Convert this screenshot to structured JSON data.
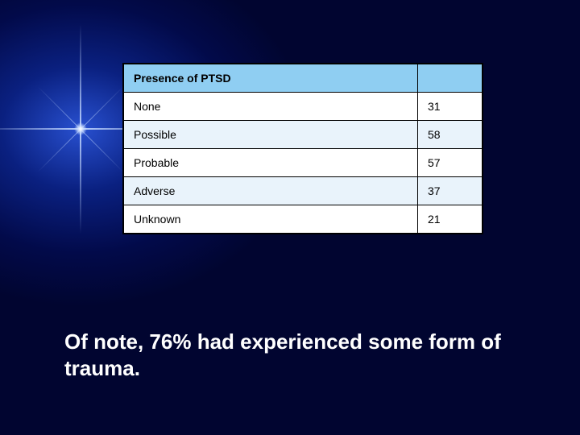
{
  "table": {
    "header": "Presence of PTSD",
    "header_bg": "#8fcef2",
    "row_alt_bg": "#e9f3fb",
    "row_bg": "#ffffff",
    "columns": [
      "label",
      "value"
    ],
    "rows": [
      {
        "label": "None",
        "value": 31
      },
      {
        "label": "Possible",
        "value": 58
      },
      {
        "label": "Probable",
        "value": 57
      },
      {
        "label": "Adverse",
        "value": 37
      },
      {
        "label": "Unknown",
        "value": 21
      }
    ],
    "font_size": 14,
    "border_color": "#000000"
  },
  "note": {
    "text": "Of note, 76% had experienced some form of trauma.",
    "color": "#ffffff",
    "font_size": 26
  },
  "background": {
    "gradient_center": "#2850d0",
    "gradient_outer": "#010530"
  }
}
